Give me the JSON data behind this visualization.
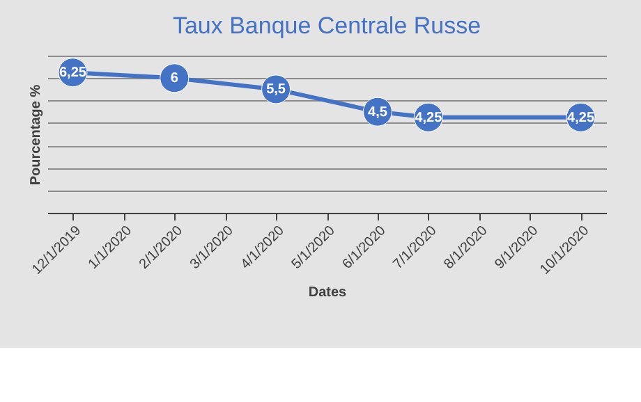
{
  "chart_data": {
    "type": "line",
    "title": "Taux Banque Centrale Russe",
    "xlabel": "Dates",
    "ylabel": "Pourcentage %",
    "categories": [
      "12/1/2019",
      "1/1/2020",
      "2/1/2020",
      "3/1/2020",
      "4/1/2020",
      "5/1/2020",
      "6/1/2020",
      "7/1/2020",
      "8/1/2020",
      "9/1/2020",
      "10/1/2020"
    ],
    "series": [
      {
        "color": "#4472c4",
        "values": [
          6.25,
          null,
          6,
          null,
          5.5,
          null,
          4.5,
          4.25,
          null,
          null,
          4.25
        ],
        "value_labels": [
          "6,25",
          null,
          "6",
          null,
          "5,5",
          null,
          "4,5",
          "4,25",
          null,
          null,
          "4,25"
        ]
      }
    ],
    "ylim": [
      0,
      7
    ],
    "yticks": [
      {
        "value": 0,
        "label": null
      },
      {
        "value": 1,
        "label": null
      },
      {
        "value": 2,
        "label": null
      },
      {
        "value": 3,
        "label": null
      },
      {
        "value": 4,
        "label": null
      },
      {
        "value": 5,
        "label": null
      },
      {
        "value": 6,
        "label": null
      },
      {
        "value": 7,
        "label": null
      }
    ],
    "tick_labels": "x",
    "grid": "y",
    "marker": "circle",
    "line_style": "solid"
  }
}
